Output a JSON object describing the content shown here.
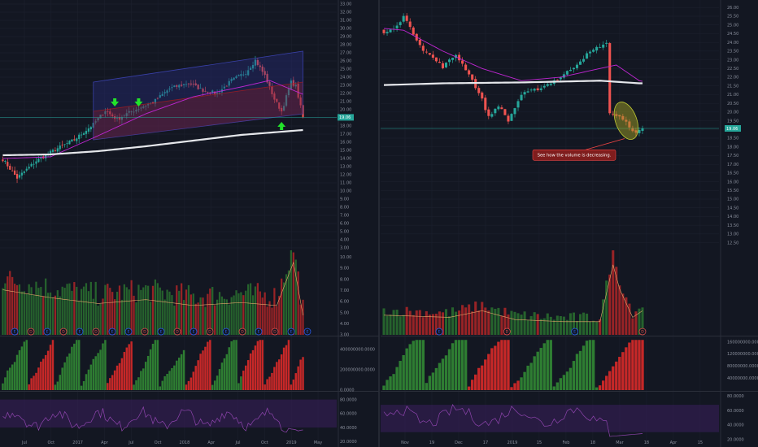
{
  "theme": {
    "background": "#131722",
    "grid": "#1e2230",
    "axis_text": "#8a8f9c",
    "up": "#26a69a",
    "down": "#ef5350",
    "volume_up": "#2e7d32",
    "volume_down": "#c62828",
    "ma_short": "#c026d3",
    "ma_long": "#e5e7eb",
    "price_line": "#26a69a",
    "arrow": "#22e32a",
    "channel": "#2a2f8a",
    "rsi_band": "#3b1f5c",
    "rsi_line": "#8e44ad",
    "annotation_bg": "#7f1d1d",
    "annotation_border": "#ef4444",
    "highlight_fill": "#9e9d24"
  },
  "chart_data": [
    {
      "type": "candlestick",
      "panel": "left",
      "price_axis": {
        "ticks": [
          "33.00",
          "32.00",
          "31.00",
          "30.00",
          "29.00",
          "28.00",
          "27.00",
          "26.00",
          "25.00",
          "24.00",
          "23.00",
          "22.00",
          "21.00",
          "20.00",
          "19.00",
          "18.00",
          "17.00",
          "16.00",
          "15.00",
          "14.00",
          "13.00",
          "12.00",
          "11.00",
          "10.00",
          "9.00",
          "8.00",
          "7.00",
          "6.00",
          "5.00",
          "4.00",
          "3.00"
        ],
        "ylim": [
          3.0,
          33.0
        ],
        "current_price": "19.06"
      },
      "time_axis": [
        "Jul",
        "Oct",
        "2017",
        "Apr",
        "Jul",
        "Oct",
        "2018",
        "Apr",
        "Jul",
        "Oct",
        "2019",
        "May"
      ],
      "price_keypoints": [
        {
          "i": 0,
          "p": 13.9
        },
        {
          "i": 6,
          "p": 11.6
        },
        {
          "i": 14,
          "p": 13.7
        },
        {
          "i": 22,
          "p": 15.1
        },
        {
          "i": 30,
          "p": 16.3
        },
        {
          "i": 38,
          "p": 18.2
        },
        {
          "i": 43,
          "p": 19.9
        },
        {
          "i": 48,
          "p": 18.8
        },
        {
          "i": 52,
          "p": 19.5
        },
        {
          "i": 58,
          "p": 20.3
        },
        {
          "i": 63,
          "p": 20.9
        },
        {
          "i": 70,
          "p": 22.6
        },
        {
          "i": 78,
          "p": 23.3
        },
        {
          "i": 84,
          "p": 22.4
        },
        {
          "i": 90,
          "p": 22.0
        },
        {
          "i": 96,
          "p": 23.6
        },
        {
          "i": 102,
          "p": 24.6
        },
        {
          "i": 106,
          "p": 26.1
        },
        {
          "i": 110,
          "p": 24.2
        },
        {
          "i": 114,
          "p": 21.3
        },
        {
          "i": 117,
          "p": 19.8
        },
        {
          "i": 121,
          "p": 23.4
        },
        {
          "i": 123,
          "p": 22.9
        },
        {
          "i": 126,
          "p": 19.06
        }
      ],
      "ma_short": [
        {
          "i": 0,
          "p": 14.0
        },
        {
          "i": 20,
          "p": 14.2
        },
        {
          "i": 40,
          "p": 16.8
        },
        {
          "i": 60,
          "p": 19.5
        },
        {
          "i": 80,
          "p": 21.6
        },
        {
          "i": 100,
          "p": 22.8
        },
        {
          "i": 112,
          "p": 23.6
        },
        {
          "i": 126,
          "p": 21.9
        }
      ],
      "ma_long": [
        {
          "i": 0,
          "p": 14.4
        },
        {
          "i": 20,
          "p": 14.5
        },
        {
          "i": 40,
          "p": 14.9
        },
        {
          "i": 60,
          "p": 15.5
        },
        {
          "i": 80,
          "p": 16.2
        },
        {
          "i": 100,
          "p": 16.9
        },
        {
          "i": 126,
          "p": 17.5
        }
      ],
      "markers": [
        {
          "type": "arrow-down",
          "i": 47,
          "p": 20.6
        },
        {
          "type": "arrow-down",
          "i": 57,
          "p": 20.6
        },
        {
          "type": "arrow-up",
          "i": 117,
          "p": 18.3
        }
      ],
      "volume_axis": {
        "ticks": [
          "10.00",
          "9.00",
          "8.00",
          "7.00",
          "6.00",
          "5.00",
          "4.00",
          "3.00"
        ],
        "ylim": [
          3.0,
          10.6
        ]
      },
      "volume_keypoints": [
        {
          "i": 0,
          "v": 7.6
        },
        {
          "i": 20,
          "v": 6.8
        },
        {
          "i": 40,
          "v": 6.2
        },
        {
          "i": 60,
          "v": 6.6
        },
        {
          "i": 80,
          "v": 6.0
        },
        {
          "i": 100,
          "v": 6.3
        },
        {
          "i": 115,
          "v": 6.0
        },
        {
          "i": 122,
          "v": 10.4
        },
        {
          "i": 126,
          "v": 5.0
        }
      ],
      "event_badges": [
        "E",
        "D",
        "E",
        "D",
        "E",
        "D",
        "E",
        "E",
        "D",
        "E",
        "D",
        "E",
        "D",
        "E",
        "D",
        "E",
        "D",
        "E",
        "E"
      ],
      "obv_axis": {
        "ticks": [
          "400000000.0000",
          "200000000.0000",
          "0.0000"
        ],
        "ylim": [
          0,
          520000000
        ]
      },
      "rsi_axis": {
        "ticks": [
          "80.0000",
          "60.0000",
          "40.0000",
          "20.0000"
        ],
        "ylim": [
          18,
          90
        ],
        "band": [
          40,
          80
        ]
      }
    },
    {
      "type": "candlestick",
      "panel": "right",
      "price_axis": {
        "ticks": [
          "26.00",
          "25.50",
          "25.00",
          "24.50",
          "24.00",
          "23.50",
          "23.00",
          "22.50",
          "22.00",
          "21.50",
          "21.00",
          "20.50",
          "20.00",
          "19.50",
          "19.00",
          "18.50",
          "18.00",
          "17.50",
          "17.00",
          "16.50",
          "16.00",
          "15.50",
          "15.00",
          "14.50",
          "14.00",
          "13.50",
          "13.00",
          "12.50"
        ],
        "ylim": [
          12.2,
          26.2
        ],
        "current_price": "19.06"
      },
      "time_axis": [
        "Nov",
        "19",
        "Dec",
        "17",
        "2019",
        "15",
        "Feb",
        "18",
        "Mar",
        "18",
        "Apr",
        "15"
      ],
      "price_keypoints": [
        {
          "i": 0,
          "p": 24.5
        },
        {
          "i": 4,
          "p": 24.9
        },
        {
          "i": 6,
          "p": 25.6
        },
        {
          "i": 8,
          "p": 24.8
        },
        {
          "i": 12,
          "p": 23.6
        },
        {
          "i": 18,
          "p": 22.6
        },
        {
          "i": 22,
          "p": 23.3
        },
        {
          "i": 26,
          "p": 22.2
        },
        {
          "i": 30,
          "p": 20.7
        },
        {
          "i": 32,
          "p": 19.7
        },
        {
          "i": 35,
          "p": 20.4
        },
        {
          "i": 38,
          "p": 19.5
        },
        {
          "i": 42,
          "p": 21.0
        },
        {
          "i": 48,
          "p": 21.4
        },
        {
          "i": 54,
          "p": 22.0
        },
        {
          "i": 58,
          "p": 22.6
        },
        {
          "i": 62,
          "p": 23.3
        },
        {
          "i": 66,
          "p": 23.8
        },
        {
          "i": 68,
          "p": 23.9
        }
      ],
      "crash_keypoints": [
        {
          "i": 69,
          "p": 20.0
        },
        {
          "i": 72,
          "p": 19.7
        },
        {
          "i": 75,
          "p": 19.2
        },
        {
          "i": 77,
          "p": 18.75
        },
        {
          "i": 79,
          "p": 19.06
        }
      ],
      "ma_short": [
        {
          "i": 0,
          "p": 24.8
        },
        {
          "i": 6,
          "p": 24.7
        },
        {
          "i": 18,
          "p": 23.5
        },
        {
          "i": 30,
          "p": 22.5
        },
        {
          "i": 42,
          "p": 21.8
        },
        {
          "i": 54,
          "p": 22.0
        },
        {
          "i": 66,
          "p": 22.5
        },
        {
          "i": 71,
          "p": 22.7
        },
        {
          "i": 78,
          "p": 21.8
        }
      ],
      "ma_long": [
        {
          "i": 0,
          "p": 21.55
        },
        {
          "i": 18,
          "p": 21.65
        },
        {
          "i": 42,
          "p": 21.7
        },
        {
          "i": 66,
          "p": 21.8
        },
        {
          "i": 78,
          "p": 21.65
        }
      ],
      "annotation": "See how the volume is decreasing.",
      "volume_keypoints": [
        {
          "i": 0,
          "v": 13.1
        },
        {
          "i": 20,
          "v": 13.0
        },
        {
          "i": 30,
          "v": 13.3
        },
        {
          "i": 40,
          "v": 12.9
        },
        {
          "i": 55,
          "v": 12.8
        },
        {
          "i": 66,
          "v": 12.8
        },
        {
          "i": 70,
          "v": 15.4
        },
        {
          "i": 72,
          "v": 14.3
        },
        {
          "i": 76,
          "v": 13.0
        },
        {
          "i": 79,
          "v": 13.3
        }
      ],
      "event_badges": [
        "E",
        "D",
        "E",
        "D"
      ],
      "obv_axis": {
        "ticks": [
          "160000000.0000",
          "120000000.0000",
          "80000000.0000",
          "40000000.0000"
        ],
        "ylim": [
          0,
          175000000
        ]
      },
      "rsi_axis": {
        "ticks": [
          "80.0000",
          "60.0000",
          "40.0000",
          "20.0000"
        ],
        "ylim": [
          15,
          85
        ],
        "band": [
          30,
          68
        ]
      }
    }
  ]
}
